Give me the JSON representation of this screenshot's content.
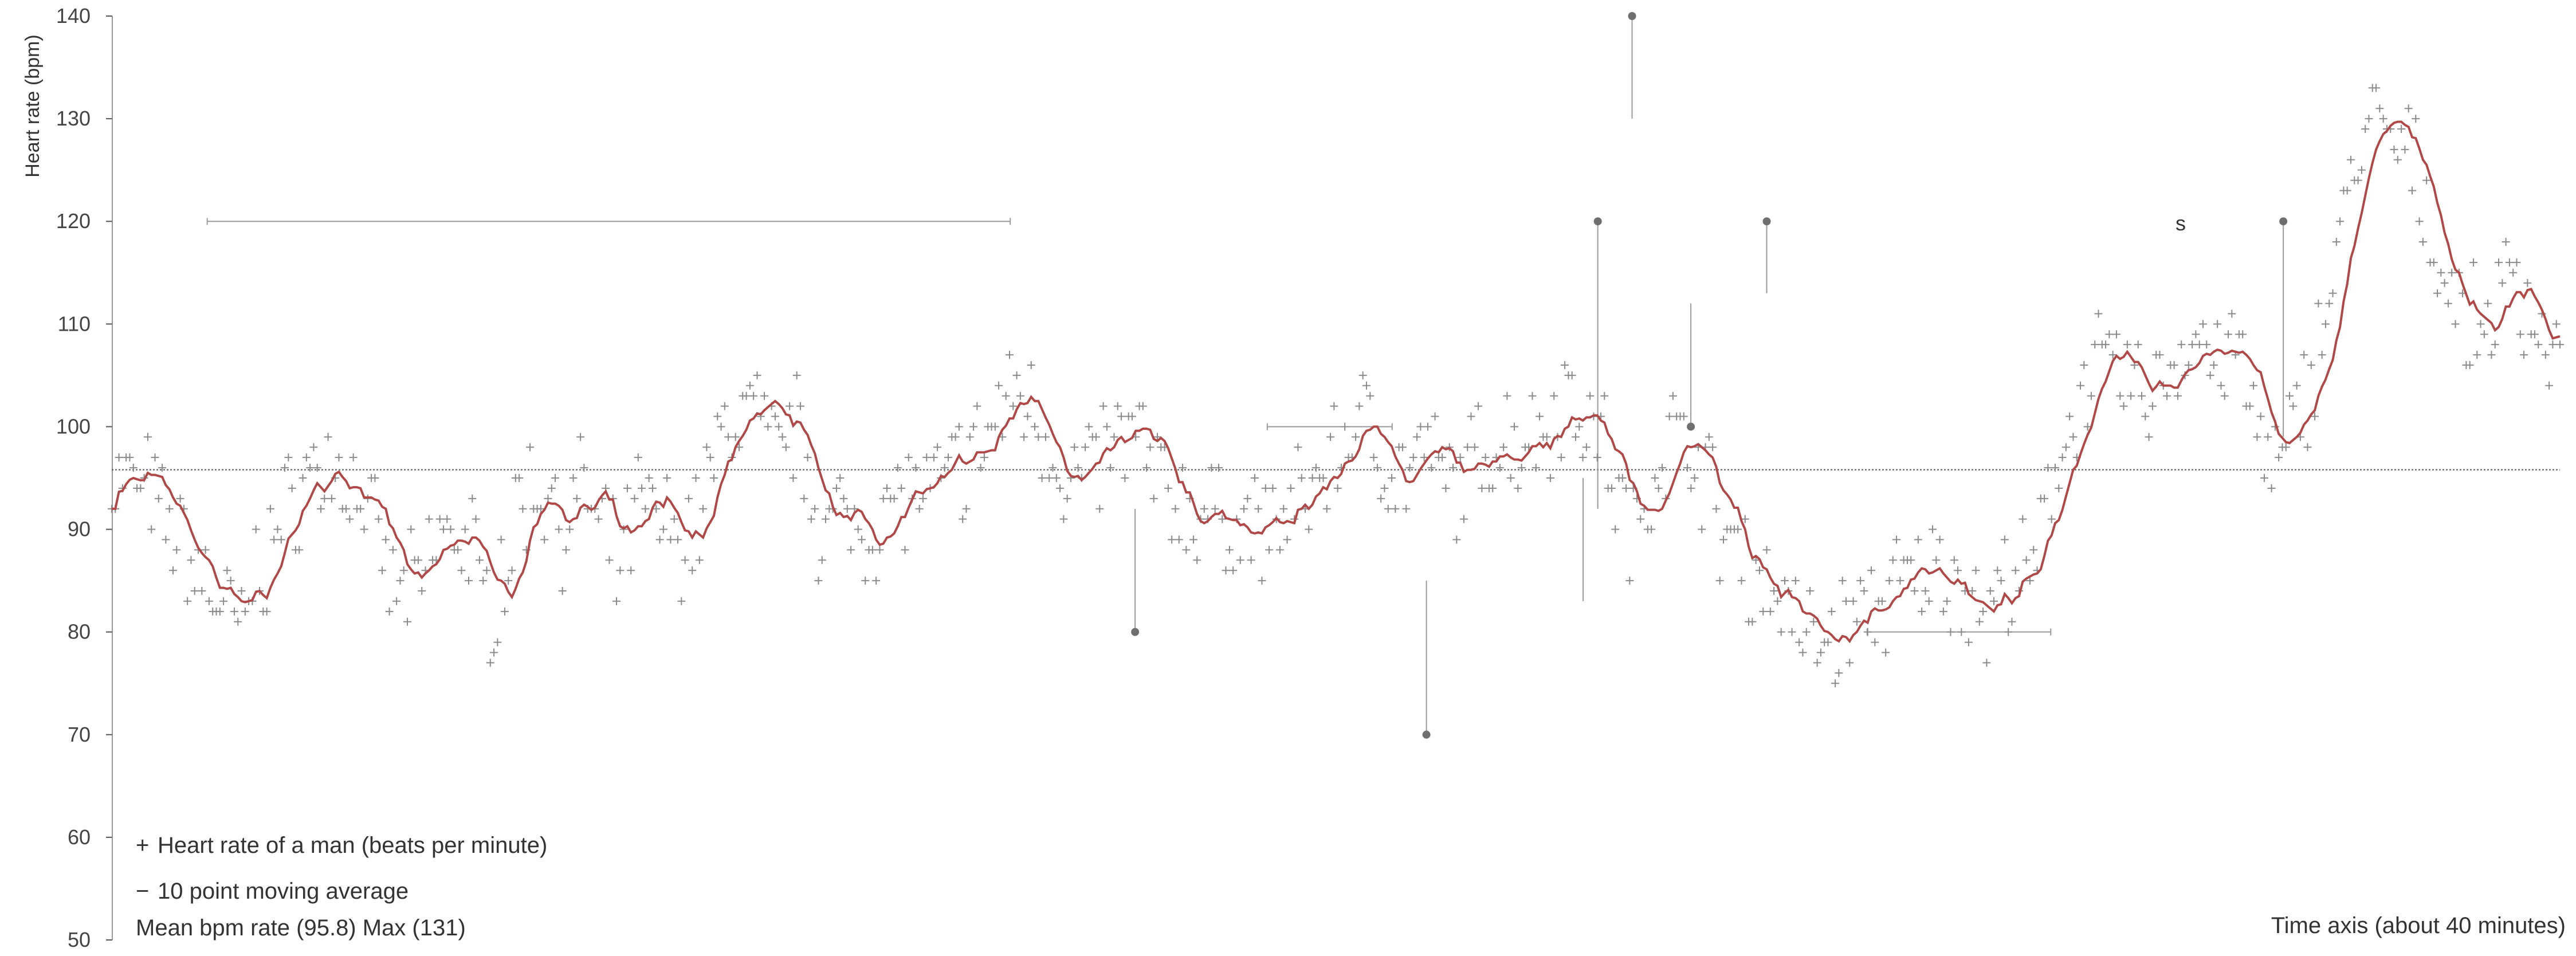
{
  "chart_data": {
    "type": "scatter",
    "ylabel": "Heart rate (bpm)",
    "xlabel": "Time axis (about 40 minutes)",
    "ylim": [
      50,
      140
    ],
    "yticks": [
      50,
      60,
      70,
      80,
      90,
      100,
      110,
      120,
      130,
      140
    ],
    "mean_line": 95.8,
    "legend": [
      {
        "symbol": "+",
        "label": "Heart rate of a man (beats per minute)",
        "color": "#888888"
      },
      {
        "symbol": "−",
        "label": "10 point moving average",
        "color": "#b24a4a"
      }
    ],
    "summary": "Mean bpm rate (95.8) Max (131)",
    "annotation_text": "s",
    "colors": {
      "points": "#8a8a8a",
      "average": "#b04848",
      "annotations": "#9a9a9a",
      "mean": "#555555"
    },
    "anchors": [
      [
        0,
        95
      ],
      [
        0.012,
        94
      ],
      [
        0.025,
        90
      ],
      [
        0.035,
        86
      ],
      [
        0.045,
        83
      ],
      [
        0.052,
        80
      ],
      [
        0.06,
        86
      ],
      [
        0.07,
        91
      ],
      [
        0.08,
        95
      ],
      [
        0.088,
        96
      ],
      [
        0.1,
        94
      ],
      [
        0.108,
        89
      ],
      [
        0.115,
        84
      ],
      [
        0.125,
        84
      ],
      [
        0.133,
        89
      ],
      [
        0.14,
        90
      ],
      [
        0.147,
        88
      ],
      [
        0.153,
        82
      ],
      [
        0.16,
        86
      ],
      [
        0.168,
        93
      ],
      [
        0.178,
        94
      ],
      [
        0.186,
        90
      ],
      [
        0.193,
        94
      ],
      [
        0.2,
        89
      ],
      [
        0.207,
        86
      ],
      [
        0.215,
        92
      ],
      [
        0.222,
        91
      ],
      [
        0.23,
        89
      ],
      [
        0.238,
        90
      ],
      [
        0.245,
        96
      ],
      [
        0.255,
        101
      ],
      [
        0.262,
        102
      ],
      [
        0.27,
        97
      ],
      [
        0.277,
        100
      ],
      [
        0.283,
        98
      ],
      [
        0.29,
        90
      ],
      [
        0.3,
        91
      ],
      [
        0.31,
        90
      ],
      [
        0.318,
        92
      ],
      [
        0.326,
        94
      ],
      [
        0.335,
        93
      ],
      [
        0.345,
        96
      ],
      [
        0.355,
        98
      ],
      [
        0.362,
        101
      ],
      [
        0.37,
        104
      ],
      [
        0.378,
        101
      ],
      [
        0.386,
        97
      ],
      [
        0.392,
        94
      ],
      [
        0.4,
        96
      ],
      [
        0.41,
        98
      ],
      [
        0.418,
        99
      ],
      [
        0.425,
        96
      ],
      [
        0.432,
        93
      ],
      [
        0.44,
        92
      ],
      [
        0.45,
        91
      ],
      [
        0.46,
        91
      ],
      [
        0.47,
        90
      ],
      [
        0.48,
        91
      ],
      [
        0.49,
        94
      ],
      [
        0.5,
        97
      ],
      [
        0.51,
        101
      ],
      [
        0.518,
        98
      ],
      [
        0.525,
        95
      ],
      [
        0.533,
        97
      ],
      [
        0.54,
        96
      ],
      [
        0.548,
        94
      ],
      [
        0.555,
        96
      ],
      [
        0.562,
        98
      ],
      [
        0.57,
        99
      ],
      [
        0.58,
        99
      ],
      [
        0.588,
        101
      ],
      [
        0.595,
        103
      ],
      [
        0.602,
        101
      ],
      [
        0.61,
        98
      ],
      [
        0.616,
        92
      ],
      [
        0.622,
        89
      ],
      [
        0.628,
        94
      ],
      [
        0.634,
        99
      ],
      [
        0.64,
        98
      ],
      [
        0.646,
        99
      ],
      [
        0.652,
        94
      ],
      [
        0.658,
        89
      ],
      [
        0.665,
        89
      ],
      [
        0.672,
        85
      ],
      [
        0.68,
        84
      ],
      [
        0.687,
        81
      ],
      [
        0.693,
        79
      ],
      [
        0.7,
        79
      ],
      [
        0.707,
        80
      ],
      [
        0.715,
        82
      ],
      [
        0.722,
        83
      ],
      [
        0.73,
        84
      ],
      [
        0.737,
        85
      ],
      [
        0.745,
        86
      ],
      [
        0.752,
        85
      ],
      [
        0.76,
        84
      ],
      [
        0.765,
        81
      ],
      [
        0.772,
        84
      ],
      [
        0.778,
        86
      ],
      [
        0.783,
        84
      ],
      [
        0.788,
        88
      ],
      [
        0.793,
        95
      ],
      [
        0.8,
        101
      ],
      [
        0.808,
        105
      ],
      [
        0.815,
        106
      ],
      [
        0.823,
        104
      ],
      [
        0.83,
        103
      ],
      [
        0.838,
        105
      ],
      [
        0.845,
        107
      ],
      [
        0.853,
        109
      ],
      [
        0.86,
        106
      ],
      [
        0.866,
        108
      ],
      [
        0.872,
        104
      ],
      [
        0.878,
        98
      ],
      [
        0.884,
        95
      ],
      [
        0.89,
        99
      ],
      [
        0.897,
        104
      ],
      [
        0.903,
        110
      ],
      [
        0.91,
        118
      ],
      [
        0.917,
        126
      ],
      [
        0.923,
        130
      ],
      [
        0.928,
        128
      ],
      [
        0.935,
        127
      ],
      [
        0.942,
        124
      ],
      [
        0.948,
        118
      ],
      [
        0.955,
        114
      ],
      [
        0.962,
        109
      ],
      [
        0.968,
        110
      ],
      [
        0.974,
        111
      ],
      [
        0.98,
        116
      ],
      [
        0.986,
        112
      ],
      [
        0.993,
        109
      ],
      [
        1.0,
        107
      ]
    ],
    "xlim": [
      0,
      1
    ]
  }
}
